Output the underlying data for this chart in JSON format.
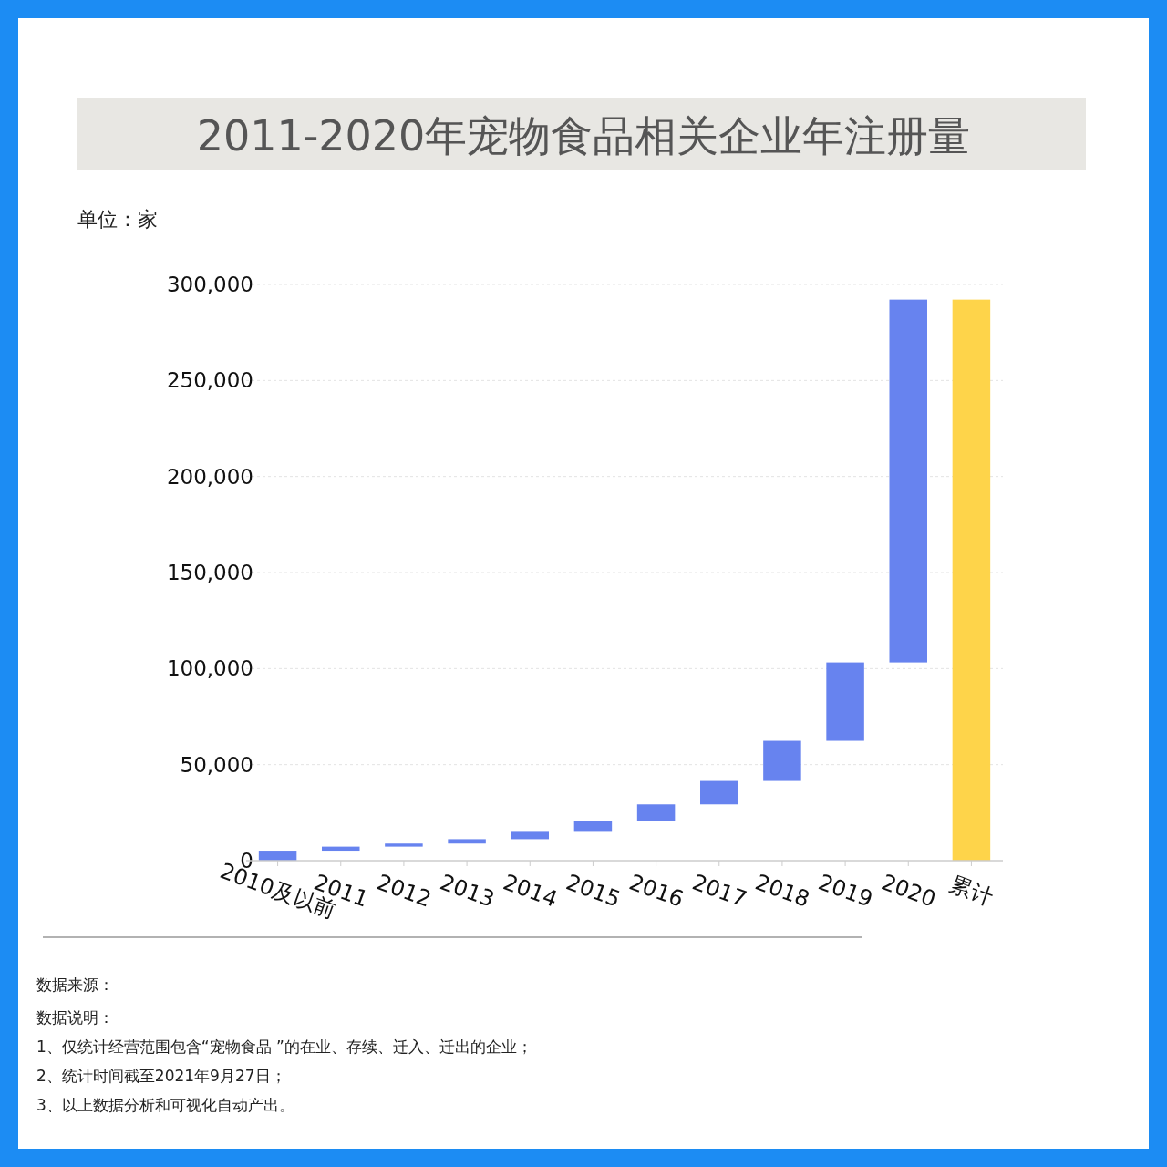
{
  "chart_data": {
    "type": "bar",
    "title": "2011-2020年宠物食品相关企业年注册量",
    "ylabel": "单位：家",
    "categories": [
      "2010及以前",
      "2011",
      "2012",
      "2013",
      "2014",
      "2015",
      "2016",
      "2017",
      "2018",
      "2019",
      "2020",
      "累计"
    ],
    "values": [
      5200,
      2100,
      1600,
      2300,
      3800,
      5600,
      8700,
      12200,
      20900,
      40800,
      188900,
      292100
    ],
    "base": [
      0,
      5200,
      7300,
      8900,
      11200,
      15000,
      20600,
      29300,
      41500,
      62400,
      103200,
      0
    ],
    "colors": [
      "#6783ef",
      "#6783ef",
      "#6783ef",
      "#6783ef",
      "#6783ef",
      "#6783ef",
      "#6783ef",
      "#6783ef",
      "#6783ef",
      "#6783ef",
      "#6783ef",
      "#fed44a"
    ],
    "ylim": [
      0,
      300000
    ],
    "yticks": [
      0,
      {
        "value": 50000,
        "label": "50,000"
      },
      {
        "value": 100000,
        "label": "100,000"
      },
      {
        "value": 150000,
        "label": "150,000"
      },
      {
        "value": 200000,
        "label": "200,000"
      },
      {
        "value": 250000,
        "label": "250,000"
      },
      {
        "value": 300000,
        "label": "300,000"
      }
    ],
    "grid": "y",
    "annotations": [
      "数据来源：",
      "数据说明：",
      "1、仅统计经营范围包含“宠物食品 ”的在业、存续、迁入、迁出的企业；",
      "2、统计时间截至2021年9月27日；",
      "3、以上数据分析和可视化自动产出。"
    ]
  }
}
